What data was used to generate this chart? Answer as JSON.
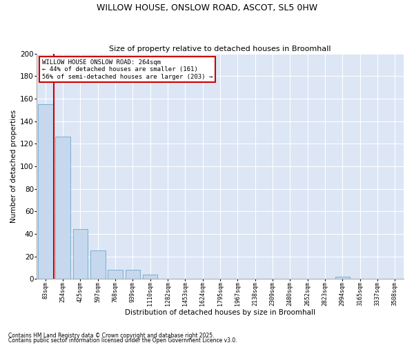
{
  "title_line1": "WILLOW HOUSE, ONSLOW ROAD, ASCOT, SL5 0HW",
  "title_line2": "Size of property relative to detached houses in Broomhall",
  "xlabel": "Distribution of detached houses by size in Broomhall",
  "ylabel": "Number of detached properties",
  "bar_color": "#c5d8ed",
  "bar_edge_color": "#7aafd4",
  "background_color": "#dce6f5",
  "grid_color": "#ffffff",
  "vline_color": "#cc0000",
  "vline_x": 0.5,
  "annotation_text": "WILLOW HOUSE ONSLOW ROAD: 264sqm\n← 44% of detached houses are smaller (161)\n56% of semi-detached houses are larger (203) →",
  "annotation_box_color": "#cc0000",
  "categories": [
    "83sqm",
    "254sqm",
    "425sqm",
    "597sqm",
    "768sqm",
    "939sqm",
    "1110sqm",
    "1282sqm",
    "1453sqm",
    "1624sqm",
    "1795sqm",
    "1967sqm",
    "2138sqm",
    "2309sqm",
    "2480sqm",
    "2652sqm",
    "2823sqm",
    "2994sqm",
    "3165sqm",
    "3337sqm",
    "3508sqm"
  ],
  "values": [
    155,
    126,
    44,
    25,
    8,
    8,
    4,
    0,
    0,
    0,
    0,
    0,
    0,
    0,
    0,
    0,
    0,
    2,
    0,
    0,
    0
  ],
  "ylim": [
    0,
    200
  ],
  "yticks": [
    0,
    20,
    40,
    60,
    80,
    100,
    120,
    140,
    160,
    180,
    200
  ],
  "footnote1": "Contains HM Land Registry data © Crown copyright and database right 2025.",
  "footnote2": "Contains public sector information licensed under the Open Government Licence v3.0."
}
